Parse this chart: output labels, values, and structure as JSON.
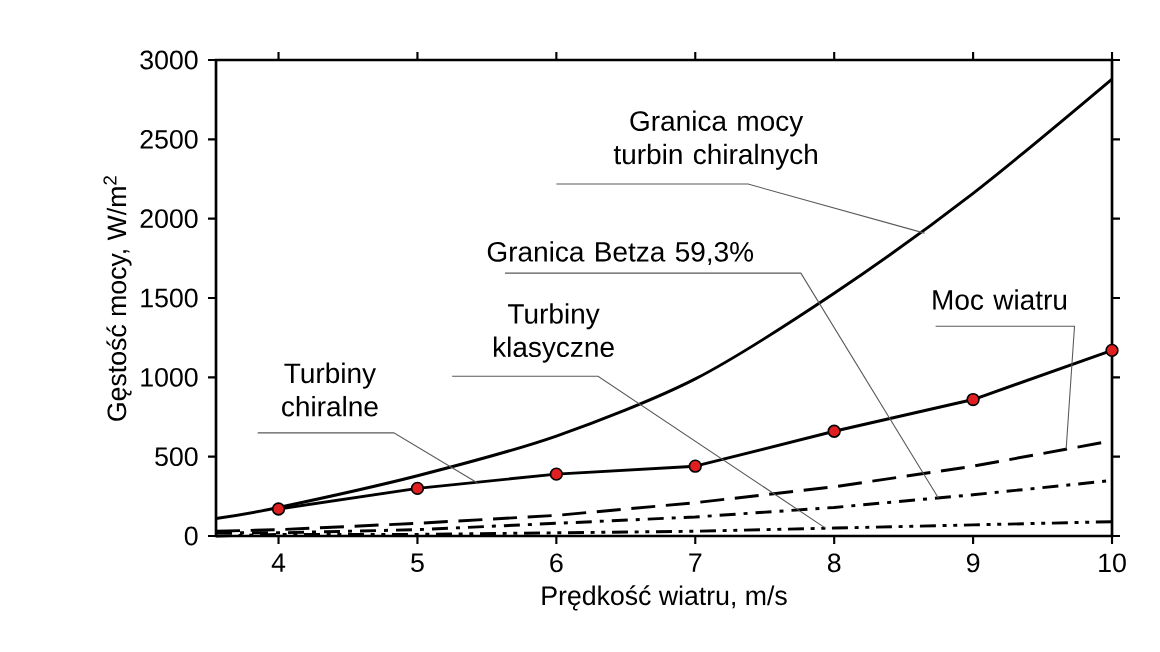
{
  "chart_data": {
    "type": "line",
    "xlabel": "Prędkość wiatru, m/s",
    "ylabel": "Gęstość mocy, W/m$^{2}$",
    "xlim": [
      3.55,
      10
    ],
    "ylim": [
      0,
      3000
    ],
    "xticks": [
      4,
      5,
      6,
      7,
      8,
      9,
      10
    ],
    "yticks": [
      0,
      500,
      1000,
      1500,
      2000,
      2500,
      3000
    ],
    "grid": false,
    "series": [
      {
        "color": "#000000",
        "line_style": "solid",
        "marker": "none",
        "x": [
          3.55,
          4,
          5,
          6,
          7,
          8,
          9,
          10
        ],
        "values": [
          110,
          180,
          380,
          630,
          990,
          1530,
          2160,
          2880
        ]
      },
      {
        "color": "#000000",
        "line_style": "solid",
        "marker": "none",
        "x": [
          4,
          5,
          6,
          7,
          8,
          9,
          10
        ],
        "values": [
          170,
          300,
          390,
          440,
          660,
          860,
          1170
        ]
      },
      {
        "type": "scatter",
        "color": "#e02020",
        "marker": "circle",
        "x": [
          4,
          5,
          6,
          7,
          8,
          9,
          10
        ],
        "values": [
          170,
          300,
          390,
          440,
          660,
          860,
          1170
        ]
      },
      {
        "color": "#000000",
        "line_style": "dashed",
        "marker": "none",
        "x": [
          3.55,
          4,
          5,
          6,
          7,
          8,
          9,
          10
        ],
        "values": [
          30,
          40,
          80,
          130,
          210,
          310,
          440,
          600
        ]
      },
      {
        "color": "#000000",
        "line_style": "dashdot",
        "marker": "none",
        "x": [
          3.55,
          4,
          5,
          6,
          7,
          8,
          9,
          10
        ],
        "values": [
          20,
          20,
          40,
          80,
          120,
          180,
          260,
          350
        ]
      },
      {
        "color": "#000000",
        "line_style": "dashdotdot",
        "marker": "none",
        "x": [
          3.55,
          4,
          5,
          6,
          7,
          8,
          9,
          10
        ],
        "values": [
          0,
          10,
          10,
          20,
          30,
          50,
          70,
          90
        ]
      }
    ],
    "annotations": [
      {
        "text": "Granica mocy turbin chiralnych",
        "x": 8.65,
        "y": 1909
      },
      {
        "text": "Granica Betza 59,3%",
        "x": 8.75,
        "y": 240
      },
      {
        "text": "Turbiny klasyczne",
        "x": 7.94,
        "y": 48
      },
      {
        "text": "Turbiny chiralne",
        "x": 5.43,
        "y": 336
      },
      {
        "text": "Moc wiatru",
        "x": 9.67,
        "y": 550
      }
    ]
  }
}
